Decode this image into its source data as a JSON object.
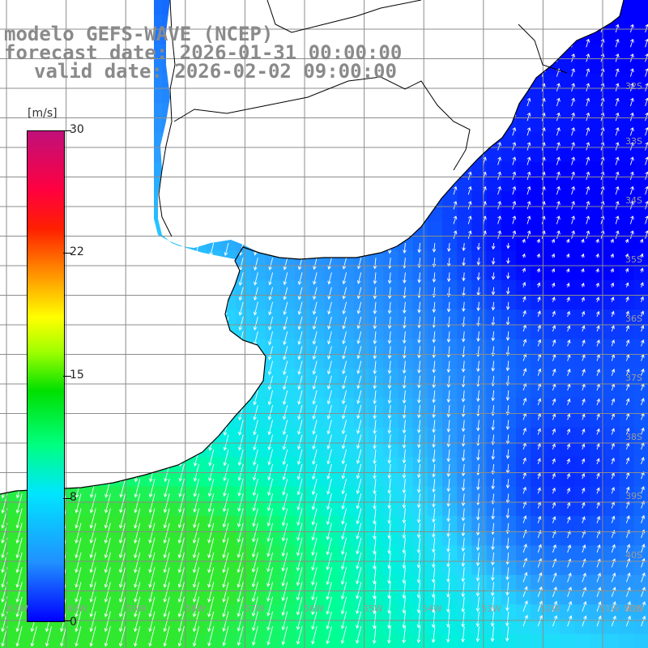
{
  "title": {
    "model": "modelo GEFS-WAVE (NCEP)",
    "forecast": "forecast date: 2026-01-31 00:00:00",
    "valid": "valid date: 2026-02-02 09:00:00"
  },
  "colorbar": {
    "unit": "[m/s]",
    "ticks": [
      "30",
      "22",
      "15",
      "8",
      "0"
    ],
    "colors": [
      "#0000ff",
      "#2090ff",
      "#00e5ff",
      "#00ff80",
      "#00e000",
      "#a0ff00",
      "#ffff00",
      "#ff9000",
      "#ff2000",
      "#c0107a"
    ]
  },
  "axes": {
    "lon_labels": [
      "61W",
      "60W",
      "59W",
      "58W",
      "57W",
      "56W",
      "55W",
      "54W",
      "53W",
      "52W",
      "51W",
      "50W"
    ],
    "lat_labels": [
      "32S",
      "33S",
      "34S",
      "35S",
      "36S",
      "37S",
      "38S",
      "39S",
      "40S",
      "41S"
    ]
  },
  "colors": {
    "land": "#ffffff",
    "grid": "#8c8c8c",
    "coast": "#000000",
    "arrow": "#ffffff"
  }
}
